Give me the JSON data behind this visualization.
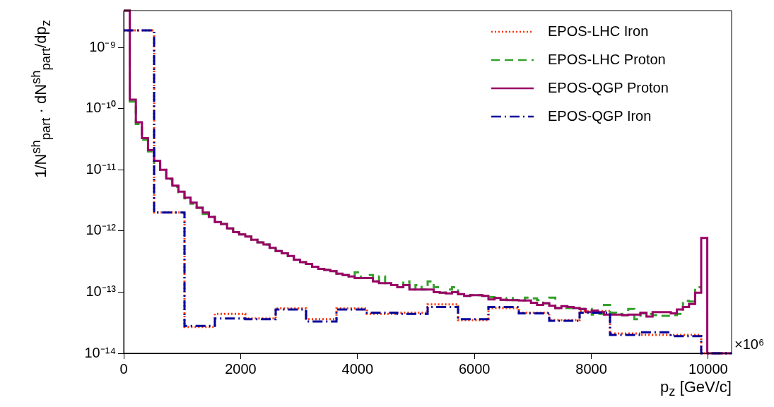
{
  "chart_data": {
    "type": "step",
    "xlabel": "p$_{z}$ [GeV/c]",
    "ylabel": "1/N$^{sh}$$_{part}$ · dN$^{sh}$$_{part}$/dp$_{z}$",
    "annotations": [
      "×10⁶"
    ],
    "xlim": [
      0,
      10400
    ],
    "xticks": [
      0,
      2000,
      4000,
      6000,
      8000,
      10000
    ],
    "ylim": [
      1e-14,
      4e-09
    ],
    "yticks": [
      {
        "value": 1e-14,
        "label": "10⁻¹⁴"
      },
      {
        "value": 1e-13,
        "label": "10⁻¹³"
      },
      {
        "value": 1e-12,
        "label": "10⁻¹²"
      },
      {
        "value": 1e-11,
        "label": "10⁻¹¹"
      },
      {
        "value": 1e-10,
        "label": "10⁻¹⁰"
      },
      {
        "value": 1e-09,
        "label": "10⁻⁹"
      }
    ],
    "log": "y",
    "grid": false,
    "legend": "top right",
    "series": [
      {
        "name": "EPOS-LHC Iron",
        "color": "#ff3300",
        "line_style": "dotted",
        "x": [
          0,
          520,
          1040,
          1560,
          2080,
          2600,
          3120,
          3640,
          4160,
          4680,
          5200,
          5720,
          6240,
          6760,
          7280,
          7800,
          8320,
          8840,
          9360,
          9880,
          10400
        ],
        "values": [
          1.9e-09,
          2e-12,
          2.7e-14,
          4.4e-14,
          3.7e-14,
          5.4e-14,
          3.6e-14,
          5.4e-14,
          4.4e-14,
          4.6e-14,
          6.3e-14,
          3.5e-14,
          5.5e-14,
          4.6e-14,
          3.5e-14,
          4.9e-14,
          2.1e-14,
          2e-14,
          2e-14,
          1e-14,
          1e-14
        ]
      },
      {
        "name": "EPOS-LHC Proton",
        "color": "#33a02c",
        "line_style": "dashed",
        "x": [
          0,
          104,
          208,
          312,
          416,
          520,
          624,
          728,
          832,
          936,
          1040,
          1144,
          1248,
          1352,
          1456,
          1560,
          1664,
          1768,
          1872,
          1976,
          2080,
          2184,
          2288,
          2392,
          2496,
          2600,
          2704,
          2808,
          2912,
          3016,
          3120,
          3224,
          3328,
          3432,
          3536,
          3640,
          3744,
          3848,
          3952,
          4056,
          4160,
          4264,
          4368,
          4472,
          4576,
          4680,
          4784,
          4888,
          4992,
          5096,
          5200,
          5304,
          5408,
          5512,
          5616,
          5720,
          5824,
          5928,
          6032,
          6136,
          6240,
          6344,
          6448,
          6552,
          6656,
          6760,
          6864,
          6968,
          7072,
          7176,
          7280,
          7384,
          7488,
          7592,
          7696,
          7800,
          7904,
          8008,
          8112,
          8216,
          8320,
          8424,
          8528,
          8632,
          8736,
          8840,
          8944,
          9048,
          9152,
          9256,
          9360,
          9464,
          9568,
          9672,
          9776,
          9880
        ],
        "values": [
          4e-09,
          1.3e-10,
          5.6e-11,
          3.1e-11,
          2e-11,
          1.3e-11,
          1e-11,
          7e-12,
          5.3e-12,
          4.3e-12,
          3.4e-12,
          2.8e-12,
          2.4e-12,
          1.9e-12,
          1.7e-12,
          1.4e-12,
          1.3e-12,
          1.1e-12,
          9.4e-13,
          8.8e-13,
          8.1e-13,
          7.2e-13,
          6.5e-13,
          6e-13,
          5.3e-13,
          4.7e-13,
          4.3e-13,
          3.9e-13,
          3.4e-13,
          3.1e-13,
          2.9e-13,
          2.6e-13,
          2.4e-13,
          2.3e-13,
          2.2e-13,
          2e-13,
          1.9e-13,
          1.8e-13,
          2.1e-13,
          1.7e-13,
          1.9e-13,
          1.5e-13,
          1.8e-13,
          1.4e-13,
          1.3e-13,
          1.2e-13,
          1.5e-13,
          1.1e-13,
          1.3e-13,
          1.1e-13,
          1.5e-13,
          1.2e-13,
          9.8e-14,
          1.1e-13,
          1.2e-13,
          9.3e-14,
          8.7e-14,
          8.9e-14,
          8.9e-14,
          8.7e-14,
          8.3e-14,
          8e-14,
          7.5e-14,
          8e-14,
          7.4e-14,
          7.3e-14,
          8.1e-14,
          7.9e-14,
          7.4e-14,
          6.5e-14,
          8.1e-14,
          5.5e-14,
          5.5e-14,
          5.5e-14,
          5.5e-14,
          5.3e-14,
          5.3e-14,
          4.3e-14,
          4.4e-14,
          6.2e-14,
          4.6e-14,
          4.4e-14,
          4.2e-14,
          5.3e-14,
          3.6e-14,
          4.5e-14,
          4.4e-14,
          4.2e-14,
          4.1e-14,
          4.1e-14,
          4.2e-14,
          4.4e-14,
          7.2e-14,
          7e-14,
          1.2e-13,
          1.2e-13
        ]
      },
      {
        "name": "EPOS-QGP Proton",
        "color": "#990066",
        "line_style": "solid",
        "x": [
          0,
          104,
          208,
          312,
          416,
          520,
          624,
          728,
          832,
          936,
          1040,
          1144,
          1248,
          1352,
          1456,
          1560,
          1664,
          1768,
          1872,
          1976,
          2080,
          2184,
          2288,
          2392,
          2496,
          2600,
          2704,
          2808,
          2912,
          3016,
          3120,
          3224,
          3328,
          3432,
          3536,
          3640,
          3744,
          3848,
          3952,
          4056,
          4160,
          4264,
          4368,
          4472,
          4576,
          4680,
          4784,
          4888,
          4992,
          5096,
          5200,
          5304,
          5408,
          5512,
          5616,
          5720,
          5824,
          5928,
          6032,
          6136,
          6240,
          6344,
          6448,
          6552,
          6656,
          6760,
          6864,
          6968,
          7072,
          7176,
          7280,
          7384,
          7488,
          7592,
          7696,
          7800,
          7904,
          8008,
          8112,
          8216,
          8320,
          8424,
          8528,
          8632,
          8736,
          8840,
          8944,
          9048,
          9152,
          9256,
          9360,
          9464,
          9568,
          9672,
          9776,
          9880,
          9984,
          10088,
          10192,
          10296,
          10400
        ],
        "values": [
          4e-09,
          1.4e-10,
          6e-11,
          3.3e-11,
          2.1e-11,
          1.4e-11,
          1e-11,
          7.2e-12,
          5.5e-12,
          4.4e-12,
          3.5e-12,
          2.9e-12,
          2.4e-12,
          2e-12,
          1.7e-12,
          1.4e-12,
          1.3e-12,
          1.1e-12,
          9.6e-13,
          8.8e-13,
          8.1e-13,
          7.2e-13,
          6.5e-13,
          6e-13,
          5.3e-13,
          4.7e-13,
          4.3e-13,
          3.9e-13,
          3.4e-13,
          3.1e-13,
          2.9e-13,
          2.6e-13,
          2.4e-13,
          2.3e-13,
          2.2e-13,
          2e-13,
          1.9e-13,
          1.8e-13,
          1.7e-13,
          1.7e-13,
          1.7e-13,
          1.5e-13,
          1.4e-13,
          1.4e-13,
          1.3e-13,
          1.2e-13,
          1.3e-13,
          1.1e-13,
          1.1e-13,
          1.1e-13,
          1.1e-13,
          1e-13,
          9.8e-14,
          9.5e-14,
          1e-13,
          9.3e-14,
          8.7e-14,
          8.9e-14,
          8.9e-14,
          8.7e-14,
          7.6e-14,
          8e-14,
          7.5e-14,
          7.4e-14,
          7.4e-14,
          7.3e-14,
          7.3e-14,
          6.7e-14,
          6.2e-14,
          6.6e-14,
          6e-14,
          5.5e-14,
          5.9e-14,
          5.7e-14,
          5.5e-14,
          5.3e-14,
          4.7e-14,
          5e-14,
          4.7e-14,
          4.3e-14,
          4.3e-14,
          4.3e-14,
          4.2e-14,
          4.3e-14,
          4.3e-14,
          4.6e-14,
          4e-14,
          4.7e-14,
          4.7e-14,
          4.7e-14,
          4.5e-14,
          5.2e-14,
          5.7e-14,
          6.4e-14,
          9.8e-14,
          7.7e-13,
          1e-14,
          1e-14,
          1e-14,
          1e-14,
          1e-14
        ]
      },
      {
        "name": "EPOS-QGP Iron",
        "color": "#000099",
        "line_style": "dashdot",
        "x": [
          0,
          520,
          1040,
          1560,
          2080,
          2600,
          3120,
          3640,
          4160,
          4680,
          5200,
          5720,
          6240,
          6760,
          7280,
          7800,
          8320,
          8840,
          9360,
          9880,
          10400
        ],
        "values": [
          1.9e-09,
          2e-12,
          2.8e-14,
          3.7e-14,
          3.6e-14,
          5.2e-14,
          3.3e-14,
          5.2e-14,
          4.6e-14,
          4.4e-14,
          5.7e-14,
          3.6e-14,
          5.7e-14,
          4.5e-14,
          3.4e-14,
          4.6e-14,
          2e-14,
          2.2e-14,
          1.9e-14,
          1e-14,
          1e-14
        ]
      }
    ]
  }
}
